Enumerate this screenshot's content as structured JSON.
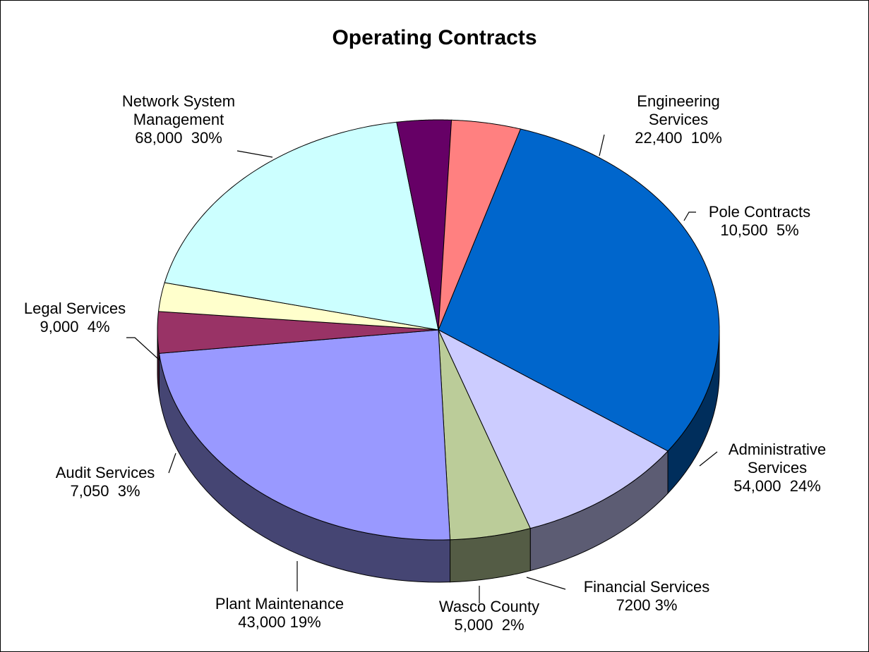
{
  "chart_data": {
    "type": "pie3d",
    "title": "Operating Contracts",
    "categories": [
      "Network System Management",
      "Engineering Services",
      "Pole Contracts",
      "Administrative Services",
      "Financial Services",
      "Wasco County",
      "Plant Maintenance",
      "Audit Services",
      "Legal Services"
    ],
    "values": [
      68000,
      22400,
      10500,
      54000,
      7200,
      5000,
      43000,
      7050,
      9000
    ],
    "value_labels": [
      "68,000  30%",
      "22,400  10%",
      "10,500  5%",
      "54,000  24%",
      "7200 3%",
      "5,000  2%",
      "43,000 19%",
      "7,050  3%",
      "9,000  4%"
    ],
    "colors": [
      "#0066CC",
      "#CCCCFF",
      "#BBCC99",
      "#9999FF",
      "#993366",
      "#FFFFCC",
      "#CCFFFF",
      "#660066",
      "#FF8080"
    ]
  }
}
